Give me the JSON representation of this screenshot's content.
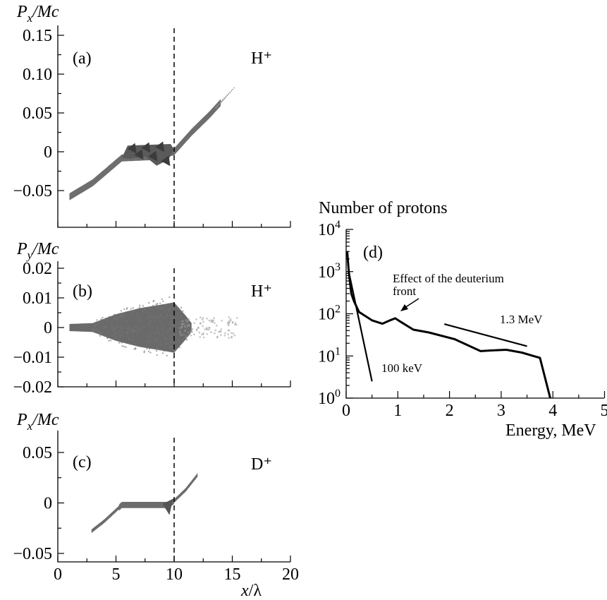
{
  "chart_data": [
    {
      "id": "a",
      "type": "scatter",
      "panel_label": "(a)",
      "species": "H⁺",
      "ylabel_main": "P",
      "ylabel_sub": "x",
      "ylabel_rest": "/Mc",
      "xlim": [
        0,
        20
      ],
      "ylim": [
        -0.075,
        0.15
      ],
      "yticks": [
        0.15,
        0.1,
        0.05,
        0,
        -0.05
      ],
      "ytick_labels": [
        "0.15",
        "0.10",
        "0.05",
        "0",
        "−0.05"
      ],
      "vline_x": 10,
      "band_points": [
        [
          1.0,
          -0.058
        ],
        [
          3.0,
          -0.04
        ],
        [
          5.5,
          -0.008
        ],
        [
          8.5,
          -0.006
        ],
        [
          10.0,
          0.0
        ],
        [
          11.5,
          0.025
        ],
        [
          13.0,
          0.047
        ],
        [
          15.2,
          0.083
        ]
      ],
      "band_halfwidth": 0.0045,
      "blob": [
        [
          5.5,
          -0.008
        ],
        [
          6.0,
          0.008
        ],
        [
          9.7,
          0.01
        ],
        [
          10.0,
          0.003
        ],
        [
          9.5,
          -0.01
        ],
        [
          8.5,
          -0.018
        ],
        [
          7.5,
          -0.006
        ],
        [
          6.2,
          -0.009
        ]
      ],
      "dark_spikes": [
        [
          6.4,
          0.004
        ],
        [
          7.0,
          -0.004
        ],
        [
          7.6,
          0.005
        ],
        [
          8.2,
          -0.006
        ],
        [
          8.8,
          0.006
        ],
        [
          9.3,
          -0.012
        ]
      ]
    },
    {
      "id": "b",
      "type": "scatter",
      "panel_label": "(b)",
      "species": "H⁺",
      "ylabel_main": "P",
      "ylabel_sub": "y",
      "ylabel_rest": "/Mc",
      "xlim": [
        0,
        20
      ],
      "ylim": [
        -0.02,
        0.02
      ],
      "yticks": [
        0.02,
        0.01,
        0,
        -0.01,
        -0.02
      ],
      "ytick_labels": [
        "0.02",
        "0.01",
        "0",
        "−0.01",
        "−0.02"
      ],
      "vline_x": 10,
      "envelope": [
        [
          1.0,
          0.0012
        ],
        [
          3.0,
          0.0015
        ],
        [
          5.0,
          0.0045
        ],
        [
          7.0,
          0.0065
        ],
        [
          9.0,
          0.0078
        ],
        [
          10.0,
          0.0085
        ],
        [
          11.0,
          0.004
        ],
        [
          11.5,
          0.0015
        ]
      ],
      "scatter_tail_x": [
        10.5,
        15.5
      ]
    },
    {
      "id": "c",
      "type": "scatter",
      "panel_label": "(c)",
      "species": "D⁺",
      "ylabel_main": "P",
      "ylabel_sub": "x",
      "ylabel_rest": "/Mc",
      "xlim": [
        0,
        20
      ],
      "ylim": [
        -0.05,
        0.05
      ],
      "yticks": [
        0.05,
        0,
        -0.05
      ],
      "ytick_labels": [
        "0.05",
        "0",
        "−0.05"
      ],
      "xticks": [
        0,
        5,
        10,
        15,
        20
      ],
      "xtick_labels": [
        "0",
        "5",
        "10",
        "15",
        "20"
      ],
      "xlabel_main": "x",
      "xlabel_rest": "/λ",
      "vline_x": 10,
      "band_points": [
        [
          2.9,
          -0.028
        ],
        [
          4.0,
          -0.018
        ],
        [
          5.5,
          -0.002
        ],
        [
          9.5,
          -0.002
        ],
        [
          10.0,
          0.002
        ],
        [
          11.0,
          0.013
        ],
        [
          12.1,
          0.029
        ]
      ],
      "band_halfwidth": 0.0018
    },
    {
      "id": "d",
      "type": "line",
      "panel_label": "(d)",
      "title": "Number of protons",
      "xlabel": "Energy, MeV",
      "yscale": "log",
      "xlim": [
        0,
        5
      ],
      "ylim": [
        1,
        10000
      ],
      "xticks": [
        0,
        1,
        2,
        3,
        4,
        5
      ],
      "xtick_labels": [
        "0",
        "1",
        "2",
        "3",
        "4",
        "5"
      ],
      "ytick_base": "10",
      "ytick_exps": [
        "4",
        "3",
        "2",
        "1",
        "0"
      ],
      "ytick_values": [
        10000,
        1000,
        100,
        10,
        1
      ],
      "spectrum": [
        [
          0.02,
          3000
        ],
        [
          0.05,
          1000
        ],
        [
          0.1,
          300
        ],
        [
          0.15,
          200
        ],
        [
          0.25,
          110
        ],
        [
          0.5,
          70
        ],
        [
          0.7,
          58
        ],
        [
          0.85,
          70
        ],
        [
          0.95,
          78
        ],
        [
          1.05,
          65
        ],
        [
          1.3,
          42
        ],
        [
          1.6,
          36
        ],
        [
          2.1,
          25
        ],
        [
          2.6,
          13
        ],
        [
          2.8,
          13.5
        ],
        [
          3.1,
          14
        ],
        [
          3.4,
          12
        ],
        [
          3.75,
          9
        ],
        [
          3.95,
          1
        ]
      ],
      "fit_100keV": [
        [
          0.05,
          1000
        ],
        [
          0.5,
          2.5
        ]
      ],
      "fit_1p3MeV": [
        [
          1.9,
          57
        ],
        [
          3.5,
          17
        ]
      ],
      "annotations": {
        "deuterium_1": "Effect of the deuterium",
        "deuterium_2": "front",
        "fit_100keV": "100 keV",
        "fit_1p3MeV": "1.3 MeV"
      }
    }
  ]
}
